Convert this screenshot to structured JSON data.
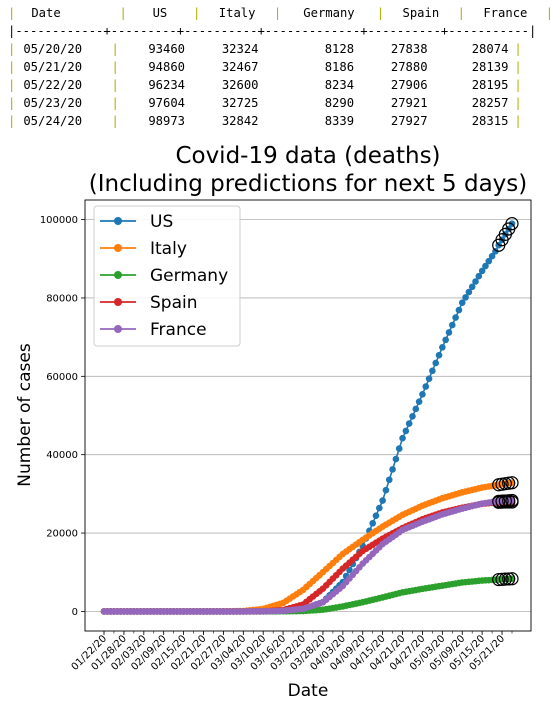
{
  "table": {
    "columns": [
      "Date",
      "US",
      "Italy",
      "Germany",
      "Spain",
      "France"
    ],
    "rows": [
      [
        "05/20/20",
        "93460",
        "32324",
        "8128",
        "27838",
        "28074"
      ],
      [
        "05/21/20",
        "94860",
        "32467",
        "8186",
        "27880",
        "28139"
      ],
      [
        "05/22/20",
        "96234",
        "32600",
        "8234",
        "27906",
        "28195"
      ],
      [
        "05/23/20",
        "97604",
        "32725",
        "8290",
        "27921",
        "28257"
      ],
      [
        "05/24/20",
        "98973",
        "32842",
        "8339",
        "27927",
        "28315"
      ]
    ]
  },
  "chart_data": {
    "type": "line",
    "title": [
      "Covid-19 data (deaths)",
      "(Including predictions for next 5 days)"
    ],
    "xlabel": "Date",
    "ylabel": "Number of cases",
    "ylim": [
      -5000,
      105000
    ],
    "yticks": [
      0,
      20000,
      40000,
      60000,
      80000,
      100000
    ],
    "xticks": [
      "01/22/20",
      "01/28/20",
      "02/03/20",
      "02/09/20",
      "02/15/20",
      "02/21/20",
      "02/27/20",
      "03/04/20",
      "03/10/20",
      "03/16/20",
      "03/22/20",
      "03/28/20",
      "04/03/20",
      "04/09/20",
      "04/15/20",
      "04/21/20",
      "04/27/20",
      "05/03/20",
      "05/09/20",
      "05/15/20",
      "05/21/20"
    ],
    "x_start": "01/22/20",
    "x_end": "05/24/20",
    "prediction_start": "05/20/20",
    "grid": "y",
    "legend_position": "top-left",
    "series": [
      {
        "name": "US",
        "color": "#1f77b4",
        "keypoints": [
          [
            "01/22/20",
            0
          ],
          [
            "02/29/20",
            1
          ],
          [
            "03/10/20",
            30
          ],
          [
            "03/16/20",
            100
          ],
          [
            "03/22/20",
            500
          ],
          [
            "03/28/20",
            2400
          ],
          [
            "04/03/20",
            7500
          ],
          [
            "04/09/20",
            16700
          ],
          [
            "04/15/20",
            28300
          ],
          [
            "04/21/20",
            44200
          ],
          [
            "04/27/20",
            55400
          ],
          [
            "05/03/20",
            67400
          ],
          [
            "05/09/20",
            78800
          ],
          [
            "05/15/20",
            86900
          ],
          [
            "05/19/20",
            91900
          ],
          [
            "05/20/20",
            93460
          ],
          [
            "05/21/20",
            94860
          ],
          [
            "05/22/20",
            96234
          ],
          [
            "05/23/20",
            97604
          ],
          [
            "05/24/20",
            98973
          ]
        ]
      },
      {
        "name": "Italy",
        "color": "#ff7f0e",
        "keypoints": [
          [
            "01/22/20",
            0
          ],
          [
            "02/21/20",
            1
          ],
          [
            "02/27/20",
            17
          ],
          [
            "03/04/20",
            107
          ],
          [
            "03/10/20",
            631
          ],
          [
            "03/16/20",
            2158
          ],
          [
            "03/22/20",
            5476
          ],
          [
            "03/28/20",
            10023
          ],
          [
            "04/03/20",
            14681
          ],
          [
            "04/09/20",
            18279
          ],
          [
            "04/15/20",
            21645
          ],
          [
            "04/21/20",
            24648
          ],
          [
            "04/27/20",
            26977
          ],
          [
            "05/03/20",
            28884
          ],
          [
            "05/09/20",
            30395
          ],
          [
            "05/15/20",
            31610
          ],
          [
            "05/19/20",
            32169
          ],
          [
            "05/20/20",
            32324
          ],
          [
            "05/21/20",
            32467
          ],
          [
            "05/22/20",
            32600
          ],
          [
            "05/23/20",
            32725
          ],
          [
            "05/24/20",
            32842
          ]
        ]
      },
      {
        "name": "Germany",
        "color": "#2ca02c",
        "keypoints": [
          [
            "01/22/20",
            0
          ],
          [
            "03/08/20",
            0
          ],
          [
            "03/10/20",
            2
          ],
          [
            "03/16/20",
            17
          ],
          [
            "03/22/20",
            94
          ],
          [
            "03/28/20",
            433
          ],
          [
            "04/03/20",
            1275
          ],
          [
            "04/09/20",
            2349
          ],
          [
            "04/15/20",
            3569
          ],
          [
            "04/21/20",
            4862
          ],
          [
            "04/27/20",
            5750
          ],
          [
            "05/03/20",
            6575
          ],
          [
            "05/09/20",
            7392
          ],
          [
            "05/15/20",
            7881
          ],
          [
            "05/19/20",
            8081
          ],
          [
            "05/20/20",
            8128
          ],
          [
            "05/21/20",
            8186
          ],
          [
            "05/22/20",
            8234
          ],
          [
            "05/23/20",
            8290
          ],
          [
            "05/24/20",
            8339
          ]
        ]
      },
      {
        "name": "Spain",
        "color": "#d62728",
        "keypoints": [
          [
            "01/22/20",
            0
          ],
          [
            "03/02/20",
            0
          ],
          [
            "03/04/20",
            2
          ],
          [
            "03/10/20",
            35
          ],
          [
            "03/16/20",
            342
          ],
          [
            "03/22/20",
            1756
          ],
          [
            "03/28/20",
            5812
          ],
          [
            "04/03/20",
            10935
          ],
          [
            "04/09/20",
            15447
          ],
          [
            "04/15/20",
            18579
          ],
          [
            "04/21/20",
            21282
          ],
          [
            "04/27/20",
            23521
          ],
          [
            "05/03/20",
            25264
          ],
          [
            "05/09/20",
            26478
          ],
          [
            "05/15/20",
            27459
          ],
          [
            "05/19/20",
            27778
          ],
          [
            "05/20/20",
            27838
          ],
          [
            "05/21/20",
            27880
          ],
          [
            "05/22/20",
            27906
          ],
          [
            "05/23/20",
            27921
          ],
          [
            "05/24/20",
            27927
          ]
        ]
      },
      {
        "name": "France",
        "color": "#9467bd",
        "keypoints": [
          [
            "01/22/20",
            0
          ],
          [
            "02/14/20",
            1
          ],
          [
            "03/04/20",
            4
          ],
          [
            "03/10/20",
            33
          ],
          [
            "03/16/20",
            148
          ],
          [
            "03/22/20",
            674
          ],
          [
            "03/28/20",
            2314
          ],
          [
            "04/03/20",
            6507
          ],
          [
            "04/09/20",
            12210
          ],
          [
            "04/15/20",
            17188
          ],
          [
            "04/21/20",
            20796
          ],
          [
            "04/27/20",
            22890
          ],
          [
            "05/03/20",
            24764
          ],
          [
            "05/09/20",
            26230
          ],
          [
            "05/15/20",
            27529
          ],
          [
            "05/19/20",
            28022
          ],
          [
            "05/20/20",
            28074
          ],
          [
            "05/21/20",
            28139
          ],
          [
            "05/22/20",
            28195
          ],
          [
            "05/23/20",
            28257
          ],
          [
            "05/24/20",
            28315
          ]
        ]
      }
    ]
  }
}
